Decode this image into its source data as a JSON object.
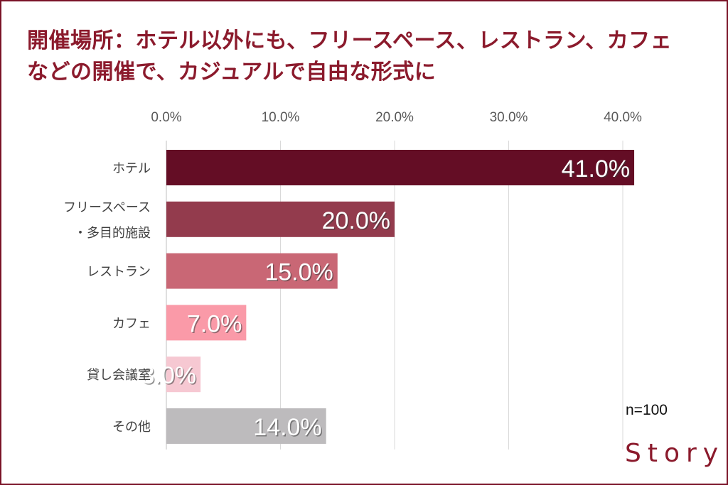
{
  "title": {
    "line1": "開催場所：ホテル以外にも、フリースペース、レストラン、カフェ",
    "line2": "などの開催で、カジュアルで自由な形式に"
  },
  "sample_note": "n=100",
  "logo": "Story",
  "colors": {
    "title": "#8b1a2c",
    "border": "#7a1327",
    "logo": "#8b1a2c"
  },
  "chart_data": {
    "type": "bar",
    "orientation": "horizontal",
    "categories": [
      [
        "ホテル"
      ],
      [
        "フリースペース",
        "・多目的施設"
      ],
      [
        "レストラン"
      ],
      [
        "カフェ"
      ],
      [
        "貸し会議室"
      ],
      [
        "その他"
      ]
    ],
    "values": [
      41.0,
      20.0,
      15.0,
      7.0,
      3.0,
      14.0
    ],
    "value_labels": [
      "41.0%",
      "20.0%",
      "15.0%",
      "7.0%",
      "3.0%",
      "14.0%"
    ],
    "bar_colors": [
      "#640d25",
      "#933b4d",
      "#c96775",
      "#fa9aa8",
      "#f6c8d2",
      "#bdbbbd"
    ],
    "x_ticks": [
      "0.0%",
      "10.0%",
      "20.0%",
      "30.0%",
      "40.0%"
    ],
    "x_tick_values": [
      0,
      10,
      20,
      30,
      40
    ],
    "xlim": [
      0,
      42
    ],
    "grid": true,
    "axis_position": "top"
  }
}
